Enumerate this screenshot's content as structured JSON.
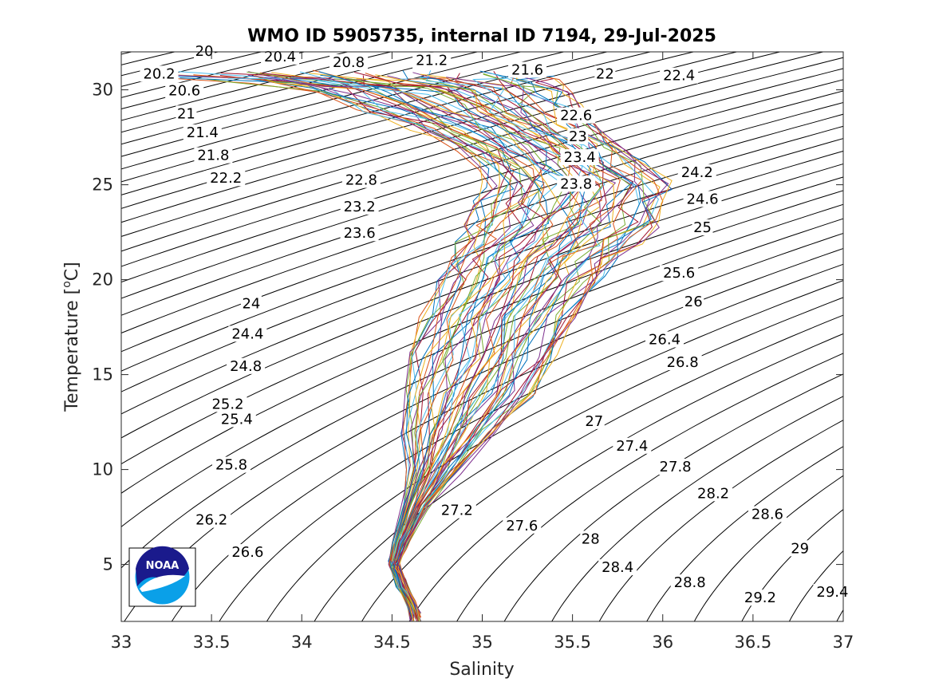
{
  "chart_data": {
    "type": "line",
    "title": "WMO ID 5905735, internal ID 7194, 29-Jul-2025",
    "xlabel": "Salinity",
    "ylabel": "Temperature [",
    "ylabel_sup": "o",
    "ylabel_end": "C]",
    "xlim": [
      33,
      37
    ],
    "ylim": [
      2,
      32
    ],
    "xticks": [
      33,
      33.5,
      34,
      34.5,
      35,
      35.5,
      36,
      36.5,
      37
    ],
    "xtick_labels": [
      "33",
      "33.5",
      "34",
      "34.5",
      "35",
      "35.5",
      "36",
      "36.5",
      "37"
    ],
    "yticks": [
      5,
      10,
      15,
      20,
      25,
      30
    ],
    "ytick_labels": [
      "5",
      "10",
      "15",
      "20",
      "25",
      "30"
    ],
    "grid": false,
    "contour_lines": {
      "quantity": "sigma-theta",
      "min": 19.8,
      "max": 29.6,
      "step": 0.2,
      "color": "#000000"
    },
    "contour_labels": [
      {
        "text": "20",
        "s": 33.46,
        "t": 31.8
      },
      {
        "text": "20.4",
        "s": 33.88,
        "t": 31.5
      },
      {
        "text": "20.8",
        "s": 34.26,
        "t": 31.2
      },
      {
        "text": "21.2",
        "s": 34.72,
        "t": 31.3
      },
      {
        "text": "21.6",
        "s": 35.25,
        "t": 30.8
      },
      {
        "text": "22",
        "s": 35.68,
        "t": 30.6
      },
      {
        "text": "22.4",
        "s": 36.09,
        "t": 30.5
      },
      {
        "text": "20.2",
        "s": 33.21,
        "t": 30.6
      },
      {
        "text": "20.6",
        "s": 33.35,
        "t": 29.7
      },
      {
        "text": "21",
        "s": 33.36,
        "t": 28.5
      },
      {
        "text": "21.4",
        "s": 33.45,
        "t": 27.5
      },
      {
        "text": "21.8",
        "s": 33.51,
        "t": 26.3
      },
      {
        "text": "22.2",
        "s": 33.58,
        "t": 25.1
      },
      {
        "text": "22.6",
        "s": 35.52,
        "t": 28.4
      },
      {
        "text": "23",
        "s": 35.53,
        "t": 27.3
      },
      {
        "text": "23.4",
        "s": 35.54,
        "t": 26.2
      },
      {
        "text": "23.8",
        "s": 35.52,
        "t": 24.8
      },
      {
        "text": "22.8",
        "s": 34.33,
        "t": 25.0
      },
      {
        "text": "23.2",
        "s": 34.32,
        "t": 23.6
      },
      {
        "text": "23.6",
        "s": 34.32,
        "t": 22.2
      },
      {
        "text": "24.2",
        "s": 36.19,
        "t": 25.4
      },
      {
        "text": "24.6",
        "s": 36.22,
        "t": 24.0
      },
      {
        "text": "25",
        "s": 36.22,
        "t": 22.5
      },
      {
        "text": "25.6",
        "s": 36.09,
        "t": 20.1
      },
      {
        "text": "26",
        "s": 36.17,
        "t": 18.6
      },
      {
        "text": "26.4",
        "s": 36.01,
        "t": 16.6
      },
      {
        "text": "26.8",
        "s": 36.11,
        "t": 15.4
      },
      {
        "text": "24",
        "s": 33.72,
        "t": 18.5
      },
      {
        "text": "24.4",
        "s": 33.7,
        "t": 16.9
      },
      {
        "text": "24.8",
        "s": 33.69,
        "t": 15.2
      },
      {
        "text": "25.2",
        "s": 33.59,
        "t": 13.2
      },
      {
        "text": "25.4",
        "s": 33.64,
        "t": 12.4
      },
      {
        "text": "25.8",
        "s": 33.61,
        "t": 10.0
      },
      {
        "text": "26.2",
        "s": 33.5,
        "t": 7.1
      },
      {
        "text": "26.6",
        "s": 33.7,
        "t": 5.4
      },
      {
        "text": "27",
        "s": 35.62,
        "t": 12.3
      },
      {
        "text": "27.4",
        "s": 35.83,
        "t": 11.0
      },
      {
        "text": "27.8",
        "s": 36.07,
        "t": 9.9
      },
      {
        "text": "28.2",
        "s": 36.28,
        "t": 8.5
      },
      {
        "text": "28.6",
        "s": 36.58,
        "t": 7.4
      },
      {
        "text": "29",
        "s": 36.76,
        "t": 5.6
      },
      {
        "text": "29.4",
        "s": 36.94,
        "t": 3.3
      },
      {
        "text": "27.2",
        "s": 34.86,
        "t": 7.6
      },
      {
        "text": "27.6",
        "s": 35.22,
        "t": 6.8
      },
      {
        "text": "28",
        "s": 35.6,
        "t": 6.1
      },
      {
        "text": "28.4",
        "s": 35.75,
        "t": 4.6
      },
      {
        "text": "28.8",
        "s": 36.15,
        "t": 3.8
      },
      {
        "text": "29.2",
        "s": 36.54,
        "t": 3.0
      }
    ],
    "profile_envelope": {
      "description_values": "salinity ranges observed at each temperature level",
      "levels": [
        {
          "t": 30.8,
          "s_min": 33.2,
          "s_max": 35.4
        },
        {
          "t": 30.4,
          "s_min": 33.6,
          "s_max": 35.45
        },
        {
          "t": 30.0,
          "s_min": 34.0,
          "s_max": 35.5
        },
        {
          "t": 29.0,
          "s_min": 34.3,
          "s_max": 35.55
        },
        {
          "t": 28.0,
          "s_min": 34.6,
          "s_max": 35.65
        },
        {
          "t": 27.0,
          "s_min": 34.85,
          "s_max": 35.8
        },
        {
          "t": 26.0,
          "s_min": 34.98,
          "s_max": 35.9
        },
        {
          "t": 25.0,
          "s_min": 35.0,
          "s_max": 36.05
        },
        {
          "t": 24.0,
          "s_min": 34.95,
          "s_max": 36.0
        },
        {
          "t": 23.0,
          "s_min": 34.9,
          "s_max": 35.98
        },
        {
          "t": 22.0,
          "s_min": 34.85,
          "s_max": 35.9
        },
        {
          "t": 21.0,
          "s_min": 34.8,
          "s_max": 35.75
        },
        {
          "t": 20.0,
          "s_min": 34.75,
          "s_max": 35.68
        },
        {
          "t": 18.0,
          "s_min": 34.65,
          "s_max": 35.55
        },
        {
          "t": 16.0,
          "s_min": 34.6,
          "s_max": 35.42
        },
        {
          "t": 14.0,
          "s_min": 34.55,
          "s_max": 35.3
        },
        {
          "t": 12.0,
          "s_min": 34.55,
          "s_max": 35.1
        },
        {
          "t": 10.0,
          "s_min": 34.58,
          "s_max": 34.88
        },
        {
          "t": 8.0,
          "s_min": 34.55,
          "s_max": 34.7
        },
        {
          "t": 6.0,
          "s_min": 34.5,
          "s_max": 34.58
        },
        {
          "t": 5.0,
          "s_min": 34.48,
          "s_max": 34.54
        },
        {
          "t": 4.0,
          "s_min": 34.52,
          "s_max": 34.58
        },
        {
          "t": 3.0,
          "s_min": 34.58,
          "s_max": 34.63
        },
        {
          "t": 2.2,
          "s_min": 34.6,
          "s_max": 34.66
        }
      ],
      "profile_count": 60,
      "colors": [
        "#0072BD",
        "#D95319",
        "#EDB120",
        "#7E2F8E",
        "#77AC30",
        "#4DBEEE",
        "#A2142F"
      ]
    },
    "logo": "NOAA"
  },
  "colors": {
    "contour": "#000000",
    "axes": "#262626",
    "logo_navy": "#1a1a8c",
    "logo_cyan": "#0aa0e8"
  }
}
